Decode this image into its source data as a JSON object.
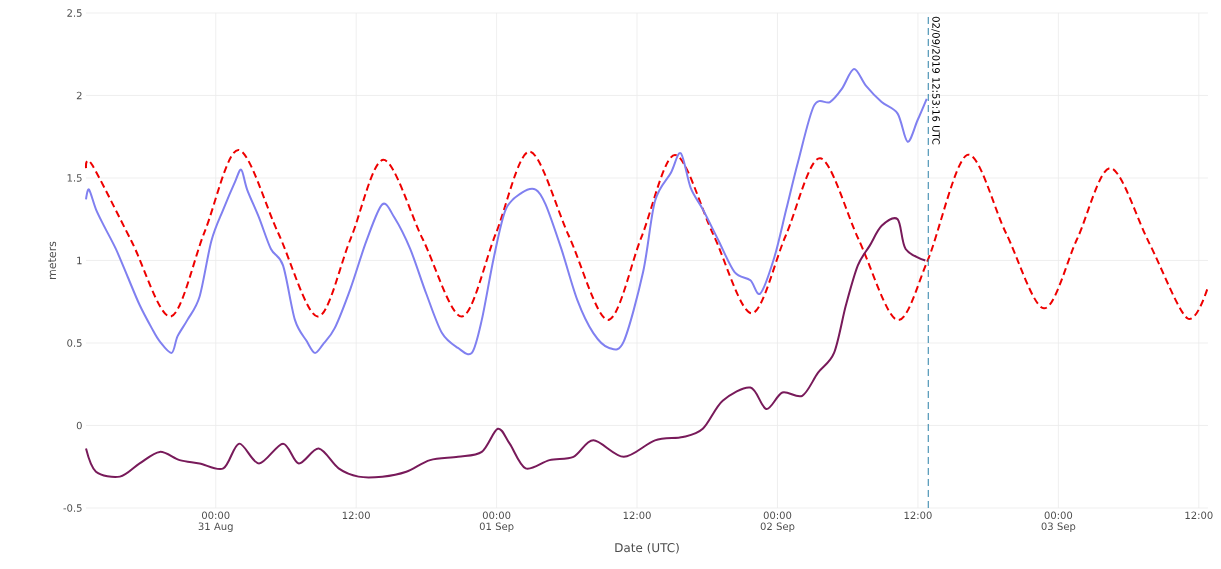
{
  "chart_data": {
    "type": "line",
    "xlabel": "Date (UTC)",
    "ylabel": "meters",
    "xlim": [
      "2019-08-30T12:55",
      "2019-09-03T12:47"
    ],
    "ylim": [
      -0.5,
      2.5
    ],
    "xticks": [
      {
        "value": "2019-08-31T00:00",
        "label": "00:00 31 Aug"
      },
      {
        "value": "2019-08-31T12:00",
        "label": "12:00"
      },
      {
        "value": "2019-09-01T00:00",
        "label": "00:00 01 Sep"
      },
      {
        "value": "2019-09-01T12:00",
        "label": "12:00"
      },
      {
        "value": "2019-09-02T00:00",
        "label": "00:00 02 Sep"
      },
      {
        "value": "2019-09-02T12:00",
        "label": "12:00"
      },
      {
        "value": "2019-09-03T00:00",
        "label": "00:00 03 Sep"
      },
      {
        "value": "2019-09-03T12:00",
        "label": "12:00"
      }
    ],
    "yticks": [
      -0.5,
      0,
      0.5,
      1,
      1.5,
      2,
      2.5
    ],
    "grid": true,
    "ref_lines": [
      {
        "axis": "x",
        "value": "2019-09-02T12:53",
        "label": "02/09/2019 12:53:16 UTC",
        "color": "#2a7fa8",
        "line_style": "dashed"
      }
    ],
    "series": [
      {
        "color": "#ee0000",
        "line_style": "dashed",
        "x": [
          "2019-08-30T12:55",
          "2019-08-30T13:26",
          "2019-08-30T16:47",
          "2019-08-30T20:08",
          "2019-08-30T23:02",
          "2019-08-31T01:56",
          "2019-08-31T05:19",
          "2019-08-31T08:42",
          "2019-08-31T11:31",
          "2019-08-31T14:20",
          "2019-08-31T17:41",
          "2019-08-31T21:02",
          "2019-08-31T23:55",
          "2019-09-01T02:49",
          "2019-09-01T06:10",
          "2019-09-01T09:31",
          "2019-09-01T12:22",
          "2019-09-01T15:14",
          "2019-09-01T18:30",
          "2019-09-01T21:47",
          "2019-09-02T00:42",
          "2019-09-02T03:38",
          "2019-09-02T06:55",
          "2019-09-02T10:12",
          "2019-09-02T12:50",
          "2019-09-02T16:13",
          "2019-09-02T19:30",
          "2019-09-02T22:46",
          "2019-09-03T01:36",
          "2019-09-03T04:27",
          "2019-09-03T07:44",
          "2019-09-03T11:01",
          "2019-09-03T12:47"
        ],
        "values": [
          1.56,
          1.58,
          1.12,
          0.66,
          1.17,
          1.67,
          1.17,
          0.66,
          1.13,
          1.61,
          1.13,
          0.66,
          1.16,
          1.66,
          1.15,
          0.64,
          1.14,
          1.64,
          1.16,
          0.68,
          1.15,
          1.62,
          1.13,
          0.64,
          1.0,
          1.64,
          1.17,
          0.71,
          1.13,
          1.56,
          1.11,
          0.65,
          0.84
        ]
      },
      {
        "color": "#8080f0",
        "line_style": "solid",
        "x": [
          "2019-08-30T12:55",
          "2019-08-30T13:10",
          "2019-08-30T13:46",
          "2019-08-30T14:27",
          "2019-08-30T15:28",
          "2019-08-30T16:29",
          "2019-08-30T17:30",
          "2019-08-30T18:32",
          "2019-08-30T19:13",
          "2019-08-30T20:14",
          "2019-08-30T20:44",
          "2019-08-30T21:35",
          "2019-08-30T22:37",
          "2019-08-30T23:38",
          "2019-08-31T00:39",
          "2019-08-31T01:40",
          "2019-08-31T02:11",
          "2019-08-31T02:41",
          "2019-08-31T03:42",
          "2019-08-31T04:43",
          "2019-08-31T05:45",
          "2019-08-31T06:46",
          "2019-08-31T07:47",
          "2019-08-31T08:28",
          "2019-08-31T09:09",
          "2019-08-31T10:10",
          "2019-08-31T11:31",
          "2019-08-31T12:53",
          "2019-08-31T14:14",
          "2019-08-31T15:16",
          "2019-08-31T16:37",
          "2019-08-31T17:59",
          "2019-08-31T19:20",
          "2019-08-31T20:42",
          "2019-08-31T21:53",
          "2019-08-31T22:44",
          "2019-08-31T23:46",
          "2019-09-01T00:47",
          "2019-09-01T02:08",
          "2019-09-01T03:20",
          "2019-09-01T04:11",
          "2019-09-01T05:32",
          "2019-09-01T06:54",
          "2019-09-01T08:16",
          "2019-09-01T09:37",
          "2019-09-01T10:52",
          "2019-09-01T12:31",
          "2019-09-01T13:32",
          "2019-09-01T14:53",
          "2019-09-01T15:44",
          "2019-09-01T16:35",
          "2019-09-01T17:37",
          "2019-09-01T18:58",
          "2019-09-01T20:20",
          "2019-09-01T21:41",
          "2019-09-01T22:32",
          "2019-09-01T23:44",
          "2019-09-02T00:45",
          "2019-09-02T01:46",
          "2019-09-02T03:08",
          "2019-09-02T04:29",
          "2019-09-02T05:30",
          "2019-09-02T06:32",
          "2019-09-02T07:33",
          "2019-09-02T08:54",
          "2019-09-02T10:16",
          "2019-09-02T11:07",
          "2019-09-02T11:58",
          "2019-09-02T12:45"
        ],
        "values": [
          1.37,
          1.43,
          1.31,
          1.21,
          1.07,
          0.9,
          0.73,
          0.59,
          0.51,
          0.44,
          0.54,
          0.64,
          0.78,
          1.12,
          1.31,
          1.48,
          1.55,
          1.43,
          1.26,
          1.07,
          0.97,
          0.64,
          0.51,
          0.44,
          0.49,
          0.59,
          0.83,
          1.12,
          1.34,
          1.26,
          1.07,
          0.8,
          0.56,
          0.47,
          0.44,
          0.64,
          1.02,
          1.31,
          1.41,
          1.43,
          1.34,
          1.07,
          0.76,
          0.56,
          0.47,
          0.51,
          0.93,
          1.36,
          1.53,
          1.65,
          1.44,
          1.31,
          1.12,
          0.93,
          0.88,
          0.8,
          1.02,
          1.31,
          1.6,
          1.94,
          1.96,
          2.04,
          2.16,
          2.06,
          1.96,
          1.89,
          1.72,
          1.85,
          1.98
        ]
      },
      {
        "color": "#781a5a",
        "line_style": "solid",
        "x": [
          "2019-08-30T12:55",
          "2019-08-30T13:46",
          "2019-08-30T15:49",
          "2019-08-30T17:30",
          "2019-08-30T19:13",
          "2019-08-30T20:55",
          "2019-08-30T22:37",
          "2019-08-31T00:39",
          "2019-08-31T02:00",
          "2019-08-31T03:42",
          "2019-08-31T05:45",
          "2019-08-31T07:06",
          "2019-08-31T08:48",
          "2019-08-31T10:30",
          "2019-08-31T12:12",
          "2019-08-31T14:14",
          "2019-08-31T16:17",
          "2019-08-31T18:19",
          "2019-08-31T20:42",
          "2019-08-31T22:44",
          "2019-09-01T00:06",
          "2019-09-01T01:07",
          "2019-09-01T02:29",
          "2019-09-01T04:31",
          "2019-09-01T06:34",
          "2019-09-01T08:16",
          "2019-09-01T10:52",
          "2019-09-01T13:32",
          "2019-09-01T15:55",
          "2019-09-01T17:37",
          "2019-09-01T19:19",
          "2019-09-01T21:41",
          "2019-09-01T23:03",
          "2019-09-02T00:25",
          "2019-09-02T02:07",
          "2019-09-02T03:28",
          "2019-09-02T04:50",
          "2019-09-02T05:51",
          "2019-09-02T06:52",
          "2019-09-02T07:53",
          "2019-09-02T08:54",
          "2019-09-02T10:16",
          "2019-09-02T10:57",
          "2019-09-02T12:38"
        ],
        "values": [
          -0.14,
          -0.28,
          -0.31,
          -0.23,
          -0.16,
          -0.21,
          -0.23,
          -0.26,
          -0.11,
          -0.23,
          -0.11,
          -0.23,
          -0.14,
          -0.26,
          -0.31,
          -0.31,
          -0.28,
          -0.21,
          -0.19,
          -0.16,
          -0.02,
          -0.11,
          -0.26,
          -0.21,
          -0.19,
          -0.09,
          -0.19,
          -0.09,
          -0.07,
          -0.02,
          0.15,
          0.23,
          0.1,
          0.2,
          0.18,
          0.32,
          0.44,
          0.73,
          0.97,
          1.09,
          1.21,
          1.25,
          1.07,
          1.0
        ]
      }
    ]
  }
}
